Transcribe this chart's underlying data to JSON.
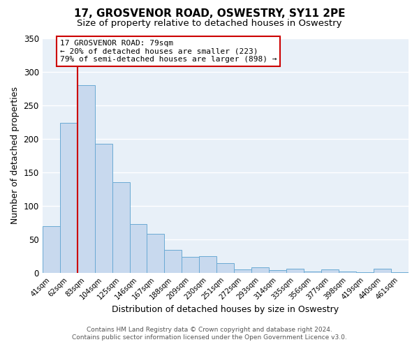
{
  "title": "17, GROSVENOR ROAD, OSWESTRY, SY11 2PE",
  "subtitle": "Size of property relative to detached houses in Oswestry",
  "xlabel": "Distribution of detached houses by size in Oswestry",
  "ylabel": "Number of detached properties",
  "bin_labels": [
    "41sqm",
    "62sqm",
    "83sqm",
    "104sqm",
    "125sqm",
    "146sqm",
    "167sqm",
    "188sqm",
    "209sqm",
    "230sqm",
    "251sqm",
    "272sqm",
    "293sqm",
    "314sqm",
    "335sqm",
    "356sqm",
    "377sqm",
    "398sqm",
    "419sqm",
    "440sqm",
    "461sqm"
  ],
  "bar_values": [
    70,
    224,
    280,
    193,
    135,
    73,
    58,
    34,
    24,
    25,
    15,
    5,
    8,
    4,
    6,
    2,
    5,
    2,
    1,
    6,
    1
  ],
  "bar_color": "#c8d9ee",
  "bar_edge_color": "#6aaad4",
  "ylim": [
    0,
    350
  ],
  "yticks": [
    0,
    50,
    100,
    150,
    200,
    250,
    300,
    350
  ],
  "vline_color": "#cc0000",
  "annotation_title": "17 GROSVENOR ROAD: 79sqm",
  "annotation_line1": "← 20% of detached houses are smaller (223)",
  "annotation_line2": "79% of semi-detached houses are larger (898) →",
  "annotation_box_color": "#ffffff",
  "annotation_box_edge": "#cc0000",
  "footer_line1": "Contains HM Land Registry data © Crown copyright and database right 2024.",
  "footer_line2": "Contains public sector information licensed under the Open Government Licence v3.0.",
  "fig_bg_color": "#ffffff",
  "plot_bg_color": "#e8f0f8",
  "grid_color": "#d0dce8",
  "title_fontsize": 11,
  "subtitle_fontsize": 9.5
}
